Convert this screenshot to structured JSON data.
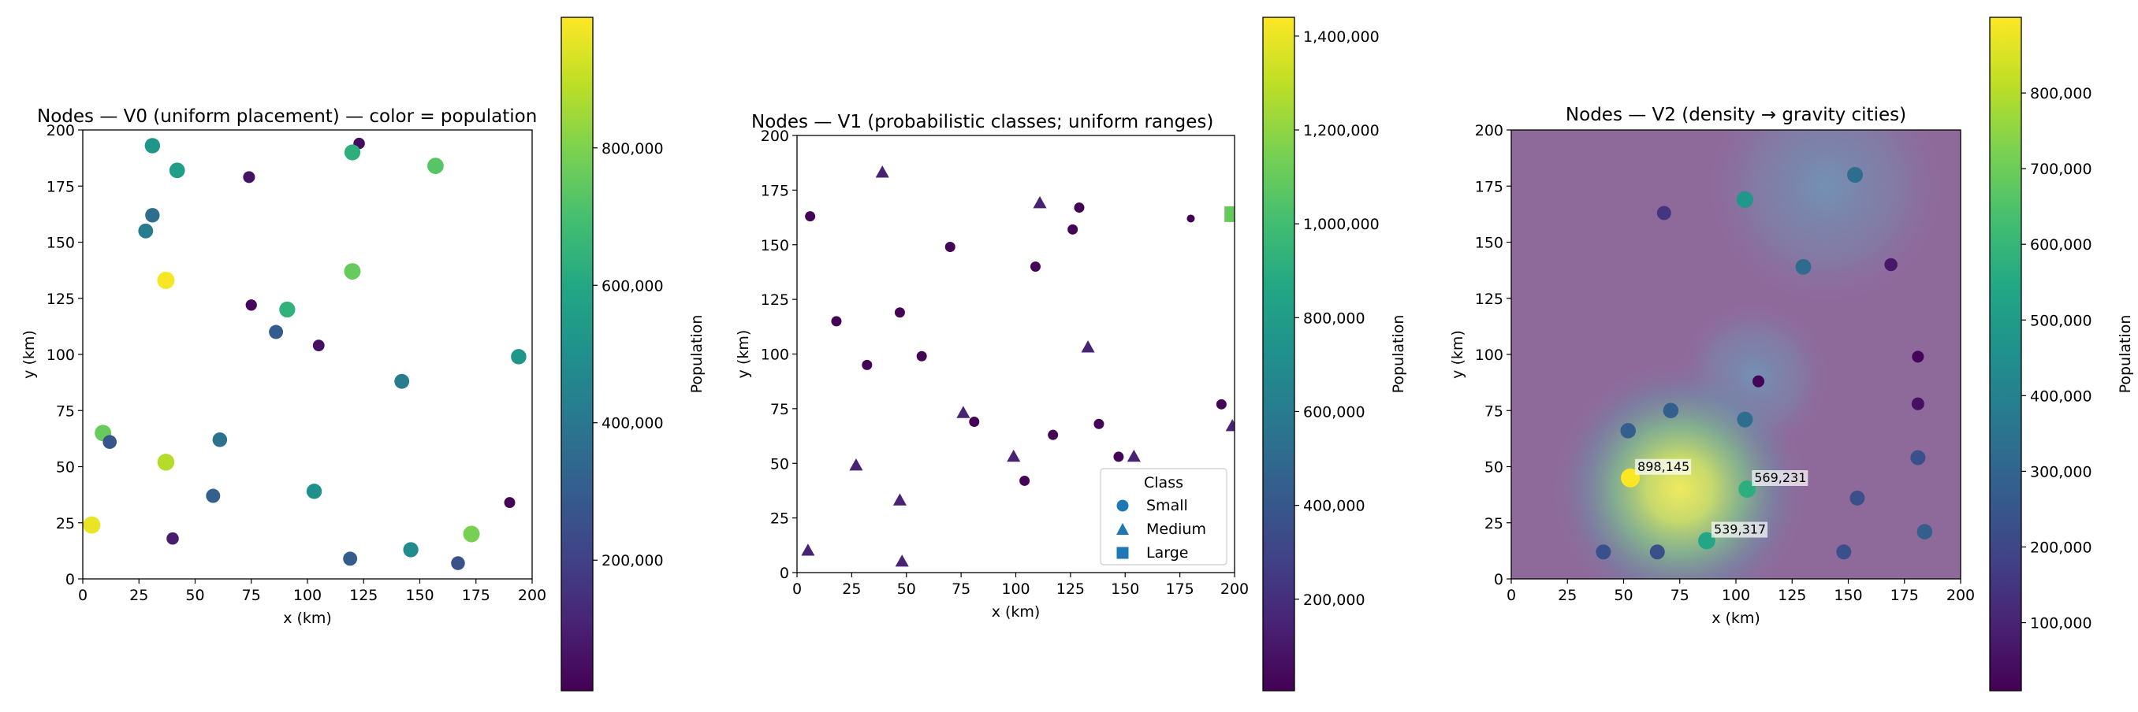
{
  "chart_data": [
    {
      "type": "scatter",
      "title": "Nodes — V0 (uniform placement) — color = population",
      "xlabel": "x (km)",
      "ylabel": "y (km)",
      "xlim": [
        0,
        200
      ],
      "ylim": [
        0,
        200
      ],
      "xticks": [
        "0",
        "25",
        "50",
        "75",
        "100",
        "125",
        "150",
        "175",
        "200"
      ],
      "yticks": [
        "0",
        "25",
        "50",
        "75",
        "100",
        "125",
        "150",
        "175",
        "200"
      ],
      "colorbar": {
        "label": "Population",
        "colormap": "viridis",
        "range": [
          10000,
          990000
        ],
        "ticks": [
          {
            "value": 200000,
            "label": "200,000"
          },
          {
            "value": 400000,
            "label": "400,000"
          },
          {
            "value": 600000,
            "label": "600,000"
          },
          {
            "value": 800000,
            "label": "800,000"
          }
        ]
      },
      "points": [
        {
          "x": 31,
          "y": 193,
          "pop": 520000
        },
        {
          "x": 123,
          "y": 194,
          "pop": 40000
        },
        {
          "x": 120,
          "y": 190,
          "pop": 630000
        },
        {
          "x": 157,
          "y": 184,
          "pop": 730000
        },
        {
          "x": 42,
          "y": 182,
          "pop": 560000
        },
        {
          "x": 74,
          "y": 179,
          "pop": 60000
        },
        {
          "x": 31,
          "y": 162,
          "pop": 360000
        },
        {
          "x": 28,
          "y": 155,
          "pop": 420000
        },
        {
          "x": 37,
          "y": 133,
          "pop": 980000
        },
        {
          "x": 120,
          "y": 137,
          "pop": 760000
        },
        {
          "x": 91,
          "y": 120,
          "pop": 640000
        },
        {
          "x": 75,
          "y": 122,
          "pop": 30000
        },
        {
          "x": 86,
          "y": 110,
          "pop": 300000
        },
        {
          "x": 105,
          "y": 104,
          "pop": 50000
        },
        {
          "x": 194,
          "y": 99,
          "pop": 520000
        },
        {
          "x": 142,
          "y": 88,
          "pop": 420000
        },
        {
          "x": 9,
          "y": 65,
          "pop": 760000
        },
        {
          "x": 12,
          "y": 61,
          "pop": 270000
        },
        {
          "x": 61,
          "y": 62,
          "pop": 380000
        },
        {
          "x": 37,
          "y": 52,
          "pop": 880000
        },
        {
          "x": 103,
          "y": 39,
          "pop": 500000
        },
        {
          "x": 58,
          "y": 37,
          "pop": 310000
        },
        {
          "x": 190,
          "y": 34,
          "pop": 20000
        },
        {
          "x": 4,
          "y": 24,
          "pop": 960000
        },
        {
          "x": 173,
          "y": 20,
          "pop": 790000
        },
        {
          "x": 40,
          "y": 18,
          "pop": 90000
        },
        {
          "x": 146,
          "y": 13,
          "pop": 480000
        },
        {
          "x": 119,
          "y": 9,
          "pop": 300000
        },
        {
          "x": 167,
          "y": 7,
          "pop": 260000
        }
      ]
    },
    {
      "type": "scatter",
      "title": "Nodes — V1 (probabilistic classes; uniform ranges)",
      "xlabel": "x (km)",
      "ylabel": "y (km)",
      "xlim": [
        0,
        200
      ],
      "ylim": [
        0,
        200
      ],
      "xticks": [
        "0",
        "25",
        "50",
        "75",
        "100",
        "125",
        "150",
        "175",
        "200"
      ],
      "yticks": [
        "0",
        "25",
        "50",
        "75",
        "100",
        "125",
        "150",
        "175",
        "200"
      ],
      "legend": {
        "title": "Class",
        "placement": "lower-right",
        "entries": [
          {
            "label": "Small",
            "marker": "circle"
          },
          {
            "label": "Medium",
            "marker": "triangle"
          },
          {
            "label": "Large",
            "marker": "square"
          }
        ]
      },
      "colorbar": {
        "label": "Population",
        "colormap": "viridis",
        "range": [
          5000,
          1440000
        ],
        "ticks": [
          {
            "value": 200000,
            "label": "200,000"
          },
          {
            "value": 400000,
            "label": "400,000"
          },
          {
            "value": 600000,
            "label": "600,000"
          },
          {
            "value": 800000,
            "label": "800,000"
          },
          {
            "value": 1000000,
            "label": "1,000,000"
          },
          {
            "value": 1200000,
            "label": "1,200,000"
          },
          {
            "value": 1400000,
            "label": "1,400,000"
          }
        ]
      },
      "points": [
        {
          "x": 6,
          "y": 163,
          "pop": 20000,
          "class": "Small"
        },
        {
          "x": 18,
          "y": 115,
          "pop": 15000,
          "class": "Small"
        },
        {
          "x": 32,
          "y": 95,
          "pop": 20000,
          "class": "Small"
        },
        {
          "x": 47,
          "y": 119,
          "pop": 20000,
          "class": "Small"
        },
        {
          "x": 57,
          "y": 99,
          "pop": 20000,
          "class": "Small"
        },
        {
          "x": 70,
          "y": 149,
          "pop": 20000,
          "class": "Small"
        },
        {
          "x": 81,
          "y": 69,
          "pop": 20000,
          "class": "Small"
        },
        {
          "x": 104,
          "y": 42,
          "pop": 20000,
          "class": "Small"
        },
        {
          "x": 109,
          "y": 140,
          "pop": 20000,
          "class": "Small"
        },
        {
          "x": 117,
          "y": 63,
          "pop": 20000,
          "class": "Small"
        },
        {
          "x": 126,
          "y": 157,
          "pop": 20000,
          "class": "Small"
        },
        {
          "x": 129,
          "y": 167,
          "pop": 15000,
          "class": "Small"
        },
        {
          "x": 138,
          "y": 68,
          "pop": 15000,
          "class": "Small"
        },
        {
          "x": 147,
          "y": 53,
          "pop": 20000,
          "class": "Small"
        },
        {
          "x": 180,
          "y": 162,
          "pop": 10000,
          "class": "Small"
        },
        {
          "x": 194,
          "y": 77,
          "pop": 20000,
          "class": "Small"
        },
        {
          "x": 39,
          "y": 183,
          "pop": 150000,
          "class": "Medium"
        },
        {
          "x": 111,
          "y": 169,
          "pop": 150000,
          "class": "Medium"
        },
        {
          "x": 133,
          "y": 103,
          "pop": 150000,
          "class": "Medium"
        },
        {
          "x": 76,
          "y": 73,
          "pop": 150000,
          "class": "Medium"
        },
        {
          "x": 27,
          "y": 49,
          "pop": 150000,
          "class": "Medium"
        },
        {
          "x": 47,
          "y": 33,
          "pop": 150000,
          "class": "Medium"
        },
        {
          "x": 99,
          "y": 53,
          "pop": 150000,
          "class": "Medium"
        },
        {
          "x": 154,
          "y": 53,
          "pop": 150000,
          "class": "Medium"
        },
        {
          "x": 5,
          "y": 10,
          "pop": 150000,
          "class": "Medium"
        },
        {
          "x": 48,
          "y": 5,
          "pop": 150000,
          "class": "Medium"
        },
        {
          "x": 199,
          "y": 67,
          "pop": 150000,
          "class": "Medium"
        },
        {
          "x": 199,
          "y": 164,
          "pop": 1100000,
          "class": "Large"
        }
      ]
    },
    {
      "type": "scatter",
      "title": "Nodes — V2 (density → gravity cities)",
      "xlabel": "x (km)",
      "ylabel": "y (km)",
      "xlim": [
        0,
        200
      ],
      "ylim": [
        0,
        200
      ],
      "xticks": [
        "0",
        "25",
        "50",
        "75",
        "100",
        "125",
        "150",
        "175",
        "200"
      ],
      "yticks": [
        "0",
        "25",
        "50",
        "75",
        "100",
        "125",
        "150",
        "175",
        "200"
      ],
      "background": "density heatmap",
      "colorbar": {
        "label": "Population",
        "colormap": "viridis",
        "range": [
          10000,
          900000
        ],
        "ticks": [
          {
            "value": 100000,
            "label": "100,000"
          },
          {
            "value": 200000,
            "label": "200,000"
          },
          {
            "value": 300000,
            "label": "300,000"
          },
          {
            "value": 400000,
            "label": "400,000"
          },
          {
            "value": 500000,
            "label": "500,000"
          },
          {
            "value": 600000,
            "label": "600,000"
          },
          {
            "value": 700000,
            "label": "700,000"
          },
          {
            "value": 800000,
            "label": "800,000"
          }
        ]
      },
      "points": [
        {
          "x": 153,
          "y": 180,
          "pop": 330000
        },
        {
          "x": 104,
          "y": 169,
          "pop": 480000
        },
        {
          "x": 68,
          "y": 163,
          "pop": 150000
        },
        {
          "x": 169,
          "y": 140,
          "pop": 70000
        },
        {
          "x": 130,
          "y": 139,
          "pop": 320000
        },
        {
          "x": 181,
          "y": 99,
          "pop": 20000
        },
        {
          "x": 110,
          "y": 88,
          "pop": 20000
        },
        {
          "x": 181,
          "y": 78,
          "pop": 50000
        },
        {
          "x": 71,
          "y": 75,
          "pop": 280000
        },
        {
          "x": 104,
          "y": 71,
          "pop": 330000
        },
        {
          "x": 52,
          "y": 66,
          "pop": 280000
        },
        {
          "x": 181,
          "y": 54,
          "pop": 230000
        },
        {
          "x": 53,
          "y": 45,
          "pop": 898145,
          "label": "898,145"
        },
        {
          "x": 105,
          "y": 40,
          "pop": 569231,
          "label": "569,231"
        },
        {
          "x": 154,
          "y": 36,
          "pop": 230000
        },
        {
          "x": 184,
          "y": 21,
          "pop": 280000
        },
        {
          "x": 87,
          "y": 17,
          "pop": 539317,
          "label": "539,317"
        },
        {
          "x": 41,
          "y": 12,
          "pop": 230000
        },
        {
          "x": 65,
          "y": 12,
          "pop": 230000
        },
        {
          "x": 148,
          "y": 12,
          "pop": 230000
        }
      ]
    }
  ]
}
